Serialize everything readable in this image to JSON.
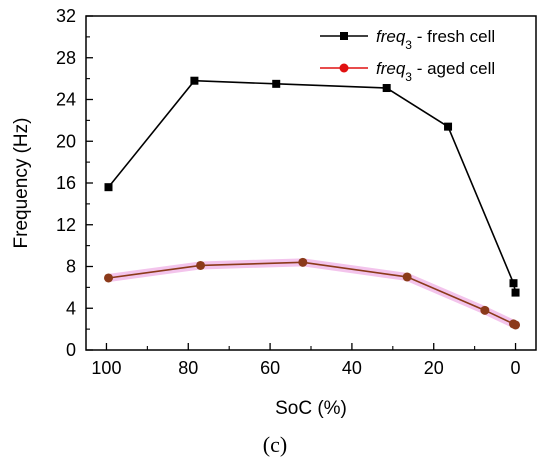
{
  "chart_data": {
    "type": "line",
    "xlabel": "SoC (%)",
    "ylabel": "Frequency (Hz)",
    "xlim": [
      105,
      -5
    ],
    "ylim": [
      0,
      32
    ],
    "x_reversed": true,
    "x_ticks": [
      100,
      80,
      60,
      40,
      20,
      0
    ],
    "y_ticks": [
      0,
      4,
      8,
      12,
      16,
      20,
      24,
      28,
      32
    ],
    "grid": false,
    "legend_position": "top-right",
    "series": [
      {
        "name": "freq3 - fresh cell",
        "legend_prefix": "freq",
        "legend_subscript": "3",
        "legend_suffix": " - fresh cell",
        "color": "#000000",
        "marker": "square",
        "x": [
          99.5,
          78.5,
          58.5,
          31.5,
          16.5,
          0.5,
          0
        ],
        "y": [
          15.6,
          25.8,
          25.5,
          25.1,
          21.4,
          6.4,
          5.5
        ]
      },
      {
        "name": "freq3 - aged cell",
        "legend_prefix": "freq",
        "legend_subscript": "3",
        "legend_suffix": " - aged cell",
        "color": "#e01010",
        "line_color": "#8b3a1a",
        "marker": "circle",
        "x": [
          99.5,
          77,
          52,
          26.5,
          7.5,
          0.5,
          0
        ],
        "y": [
          6.9,
          8.1,
          8.4,
          7.0,
          3.8,
          2.5,
          2.4
        ]
      }
    ]
  },
  "panel_label": "(c)"
}
